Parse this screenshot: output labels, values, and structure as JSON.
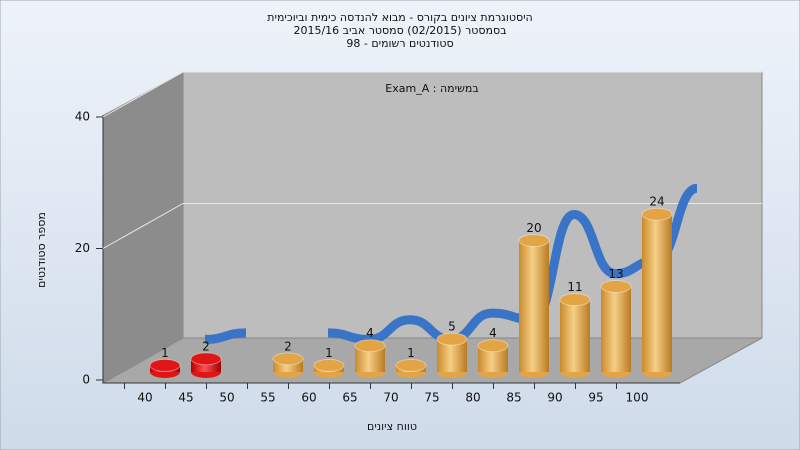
{
  "chart_data": {
    "type": "bar3d",
    "title": "היסטוגרמת ציונים בקורס - מבוא להנדסה כימית וביוכימית",
    "subtitle": [
      "בסמסטר (02/2015) סמסטר אביב 2015/16",
      "סטודנטים רשומים - 98"
    ],
    "annotation": "במשימה : Exam_A",
    "x_label": "טווח ציונים",
    "y_label": "מספר סטודנטים",
    "categories": [
      40,
      45,
      50,
      55,
      60,
      65,
      70,
      75,
      80,
      85,
      90,
      95,
      100
    ],
    "values": [
      1,
      2,
      null,
      2,
      1,
      4,
      1,
      5,
      4,
      20,
      11,
      13,
      24
    ],
    "colors": [
      "#e01515",
      "#e01515",
      null,
      "#e3a445",
      "#e3a445",
      "#e3a445",
      "#e3a445",
      "#e3a445",
      "#e3a445",
      "#e3a445",
      "#e3a445",
      "#e3a445",
      "#e3a445"
    ],
    "line_color": "#3a74c6",
    "ylim": [
      0,
      40
    ],
    "yticks": [
      0,
      20,
      40
    ],
    "grid": true
  }
}
